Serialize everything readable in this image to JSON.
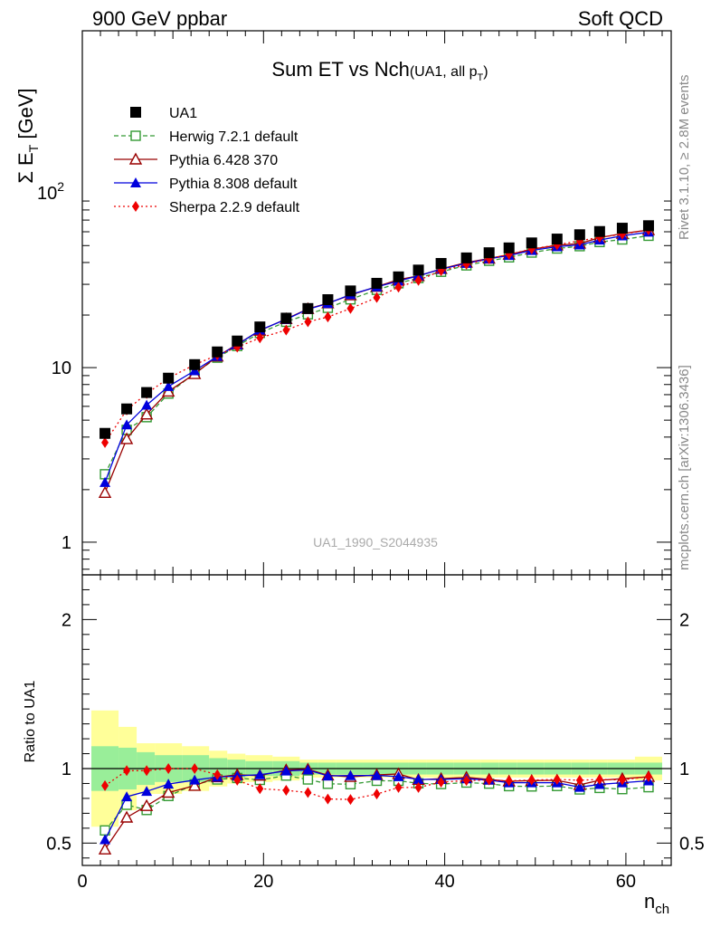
{
  "header": {
    "left": "900 GeV ppbar",
    "right": "Soft QCD"
  },
  "side_labels": {
    "rivet": "Rivet 3.1.10, ≥ 2.8M events",
    "mcplots": "mcplots.cern.ch [arXiv:1306.3436]"
  },
  "chart_data": {
    "type": "scatter",
    "title": "Sum ET vs Nch",
    "title_suffix": "(UA1, all p",
    "title_suffix_sub": "T",
    "title_suffix_end": ")",
    "ylabel_main": "Σ E",
    "ylabel_main_sub": "T",
    "ylabel_main_unit": " [GeV]",
    "ylabel_ratio": "Ratio to UA1",
    "xlabel": "n",
    "xlabel_sub": "ch",
    "watermark": "UA1_1990_S2044935",
    "x_range": [
      0,
      65
    ],
    "y_main_range": [
      0.65,
      850
    ],
    "y_main_scale": "log",
    "y_ratio_range": [
      0.35,
      2.3
    ],
    "x_ticks": [
      0,
      20,
      40,
      60
    ],
    "x_tick_labels": [
      "0",
      "20",
      "40",
      "60"
    ],
    "y_main_ticks": [
      1,
      10,
      100
    ],
    "y_main_tick_labels": [
      "1",
      "10",
      "10"
    ],
    "y_main_tick_sup": [
      "",
      "",
      "2"
    ],
    "y_ratio_ticks": [
      0.5,
      1,
      2
    ],
    "y_ratio_tick_labels": [
      "0.5",
      "1",
      "2"
    ],
    "x": [
      2.5,
      4.9,
      7.1,
      9.5,
      12.4,
      14.9,
      17.1,
      19.6,
      22.5,
      24.9,
      27.1,
      29.6,
      32.5,
      34.9,
      37.1,
      39.6,
      42.4,
      44.9,
      47.1,
      49.6,
      52.4,
      54.9,
      57.1,
      59.6,
      62.5
    ],
    "x_bin_edges": [
      1,
      4,
      6,
      8,
      11,
      14,
      16,
      18,
      21,
      24,
      26,
      28,
      31,
      34,
      36,
      38,
      41,
      44,
      46,
      48,
      51,
      54,
      56,
      58,
      61,
      64
    ],
    "series": [
      {
        "name": "UA1",
        "style": "data",
        "color": "#000000",
        "values": [
          4.2,
          5.8,
          7.2,
          8.7,
          10.4,
          12.3,
          14.2,
          17.1,
          19.2,
          21.8,
          24.5,
          27.5,
          30.4,
          33.1,
          36.2,
          39.5,
          42.5,
          45.5,
          48.5,
          51.8,
          54.5,
          57.7,
          60.2,
          62.9,
          65.0
        ],
        "band_inner": [
          1.15,
          1.14,
          1.11,
          1.09,
          1.09,
          1.07,
          1.06,
          1.05,
          1.05,
          1.04,
          1.04,
          1.04,
          1.04,
          1.04,
          1.04,
          1.04,
          1.04,
          1.04,
          1.04,
          1.04,
          1.04,
          1.04,
          1.04,
          1.04,
          1.04
        ],
        "band_outer": [
          1.39,
          1.28,
          1.17,
          1.17,
          1.15,
          1.12,
          1.1,
          1.09,
          1.08,
          1.06,
          1.06,
          1.06,
          1.06,
          1.06,
          1.06,
          1.06,
          1.06,
          1.06,
          1.06,
          1.06,
          1.06,
          1.06,
          1.06,
          1.06,
          1.08
        ]
      },
      {
        "name": "Herwig 7.2.1 default",
        "style": "dashed",
        "marker": "open-square",
        "color": "#339933",
        "values": [
          2.45,
          4.4,
          5.2,
          7.1,
          9.3,
          11.4,
          13.3,
          15.8,
          18.3,
          20.2,
          22.0,
          24.6,
          27.9,
          30.4,
          32.6,
          35.4,
          38.5,
          40.9,
          42.8,
          45.6,
          48.1,
          49.6,
          52.4,
          54.2,
          56.9
        ],
        "ratio": [
          0.585,
          0.757,
          0.722,
          0.816,
          0.894,
          0.927,
          0.937,
          0.924,
          0.953,
          0.927,
          0.898,
          0.895,
          0.918,
          0.918,
          0.901,
          0.896,
          0.906,
          0.899,
          0.882,
          0.88,
          0.883,
          0.86,
          0.87,
          0.862,
          0.875
        ]
      },
      {
        "name": "Pythia 6.428 370",
        "style": "solid",
        "marker": "open-triangle",
        "color": "#990000",
        "values": [
          1.92,
          3.9,
          5.4,
          7.3,
          9.2,
          11.6,
          13.6,
          16.3,
          19.0,
          21.7,
          23.4,
          26.0,
          29.1,
          31.9,
          33.5,
          36.8,
          40.0,
          42.2,
          44.4,
          47.6,
          50.2,
          51.4,
          55.5,
          58.6,
          61.4
        ],
        "ratio": [
          0.458,
          0.672,
          0.75,
          0.839,
          0.885,
          0.943,
          0.958,
          0.953,
          0.99,
          0.995,
          0.955,
          0.945,
          0.957,
          0.964,
          0.925,
          0.932,
          0.941,
          0.927,
          0.915,
          0.919,
          0.921,
          0.891,
          0.922,
          0.932,
          0.945
        ]
      },
      {
        "name": "Pythia 8.308 default",
        "style": "solid",
        "marker": "filled-triangle",
        "color": "#0000dd",
        "values": [
          2.2,
          4.7,
          6.1,
          7.8,
          9.6,
          11.6,
          13.5,
          16.4,
          18.9,
          21.6,
          23.3,
          26.2,
          29.0,
          31.3,
          33.6,
          36.6,
          39.6,
          42.0,
          43.9,
          46.9,
          49.3,
          50.5,
          53.8,
          56.9,
          59.7
        ],
        "ratio": [
          0.523,
          0.811,
          0.847,
          0.896,
          0.923,
          0.943,
          0.951,
          0.959,
          0.984,
          0.991,
          0.951,
          0.953,
          0.954,
          0.946,
          0.928,
          0.927,
          0.932,
          0.923,
          0.905,
          0.905,
          0.905,
          0.875,
          0.894,
          0.905,
          0.918
        ]
      },
      {
        "name": "Sherpa 2.2.9 default",
        "style": "dotted",
        "marker": "filled-diamond",
        "color": "#ee0000",
        "values": [
          3.72,
          5.72,
          7.1,
          8.7,
          10.4,
          11.8,
          13.1,
          14.8,
          16.4,
          18.3,
          19.5,
          21.8,
          25.2,
          28.9,
          31.6,
          35.9,
          39.1,
          42.0,
          44.5,
          47.8,
          50.5,
          53.2,
          55.8,
          58.1,
          61.5
        ],
        "ratio": [
          0.885,
          0.986,
          0.986,
          1.0,
          1.0,
          0.959,
          0.922,
          0.865,
          0.854,
          0.839,
          0.796,
          0.793,
          0.829,
          0.873,
          0.873,
          0.909,
          0.92,
          0.923,
          0.918,
          0.923,
          0.927,
          0.922,
          0.927,
          0.924,
          0.946
        ]
      }
    ]
  }
}
